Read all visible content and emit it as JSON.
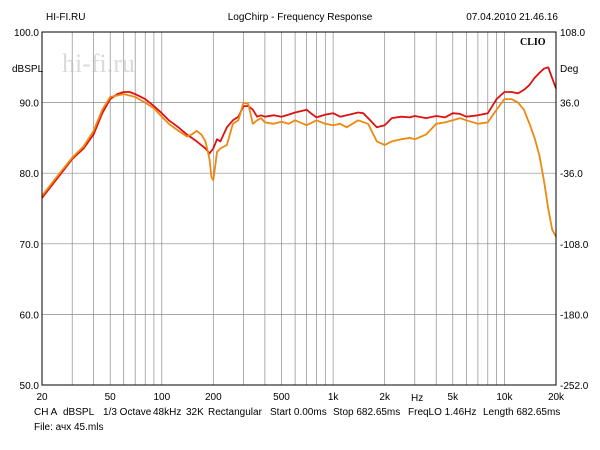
{
  "header": {
    "left": "HI-FI.RU",
    "center": "LogChirp - Frequency Response",
    "right": "07.04.2010 21.46.16"
  },
  "watermark": "hi-fi.ru",
  "brand": "CLIO",
  "footer": {
    "channel": "CH A",
    "unit": "dBSPL",
    "smoothing": "1/3 Octave",
    "sample_rate": "48kHz",
    "points": "32K",
    "window": "Rectangular",
    "start": "Start 0.00ms",
    "stop": "Stop 682.65ms",
    "freqlo": "FreqLO 1.46Hz",
    "length": "Length 682.65ms",
    "file": "File: ачх 45.mls"
  },
  "chart_data": {
    "type": "line",
    "x_scale": "log",
    "xlim": [
      20,
      20000
    ],
    "ylim": [
      50,
      100
    ],
    "ylim_right": [
      -252,
      108
    ],
    "ylabel_left": "dBSPL",
    "ylabel_right": "Deg",
    "xlabel": "Hz",
    "x_ticks": [
      20,
      50,
      100,
      200,
      500,
      1000,
      2000,
      5000,
      10000,
      20000
    ],
    "x_tick_labels": [
      "20",
      "50",
      "100",
      "200",
      "500",
      "1k",
      "2k",
      "5k",
      "10k",
      "20k"
    ],
    "y_ticks": [
      50,
      60,
      70,
      80,
      90,
      100
    ],
    "y_tick_labels": [
      "50.0",
      "60.0",
      "70.0",
      "80.0",
      "90.0",
      "100.0"
    ],
    "y_right_tick_labels": [
      "-252.0",
      "-180.0",
      "-108.0",
      "-36.0",
      "36.0",
      "108.0"
    ],
    "grid": true,
    "series": [
      {
        "color": "#dd1111",
        "x": [
          20,
          25,
          30,
          35,
          40,
          45,
          50,
          55,
          60,
          65,
          70,
          80,
          90,
          100,
          110,
          125,
          140,
          160,
          180,
          190,
          200,
          210,
          220,
          240,
          260,
          280,
          300,
          320,
          340,
          360,
          380,
          400,
          450,
          500,
          550,
          600,
          650,
          700,
          750,
          800,
          900,
          1000,
          1100,
          1200,
          1300,
          1400,
          1500,
          1600,
          1800,
          2000,
          2200,
          2500,
          2800,
          3000,
          3500,
          4000,
          4500,
          5000,
          5500,
          6000,
          7000,
          8000,
          9000,
          10000,
          11000,
          12000,
          13000,
          14000,
          15000,
          16000,
          17000,
          18000,
          20000
        ],
        "y": [
          76.5,
          79.5,
          82.0,
          83.5,
          85.5,
          88.5,
          90.5,
          91.2,
          91.5,
          91.5,
          91.2,
          90.5,
          89.5,
          88.5,
          87.5,
          86.5,
          85.5,
          84.5,
          83.5,
          82.8,
          83.5,
          84.8,
          84.5,
          86.5,
          87.5,
          88.0,
          89.5,
          89.5,
          89.0,
          88.0,
          88.2,
          88.0,
          88.2,
          88.0,
          88.3,
          88.6,
          88.8,
          89.0,
          88.4,
          87.9,
          88.3,
          88.5,
          88.0,
          88.2,
          88.4,
          88.6,
          88.5,
          87.8,
          86.5,
          86.8,
          87.8,
          88.0,
          87.9,
          88.1,
          87.8,
          88.1,
          87.9,
          88.5,
          88.4,
          88.0,
          88.2,
          88.5,
          90.5,
          91.5,
          91.5,
          91.3,
          91.8,
          92.5,
          93.5,
          94.2,
          94.8,
          95.0,
          92.0
        ]
      },
      {
        "color": "#ee8811",
        "x": [
          20,
          25,
          30,
          35,
          40,
          45,
          50,
          55,
          60,
          65,
          70,
          80,
          90,
          100,
          110,
          125,
          140,
          150,
          160,
          170,
          180,
          190,
          195,
          200,
          205,
          210,
          220,
          240,
          260,
          280,
          300,
          320,
          340,
          360,
          380,
          400,
          450,
          500,
          550,
          600,
          700,
          800,
          900,
          1000,
          1100,
          1200,
          1400,
          1600,
          1800,
          2000,
          2200,
          2500,
          2800,
          3000,
          3500,
          4000,
          4500,
          5000,
          5500,
          6000,
          7000,
          8000,
          9000,
          10000,
          11000,
          12000,
          13000,
          14000,
          15000,
          16000,
          17000,
          18000,
          19000,
          20000
        ],
        "y": [
          76.8,
          79.8,
          82.2,
          83.8,
          86.0,
          89.0,
          90.8,
          91.0,
          91.2,
          91.0,
          90.8,
          90.0,
          89.2,
          88.0,
          87.0,
          86.0,
          85.2,
          85.5,
          86.0,
          85.5,
          84.5,
          82.0,
          79.5,
          79.0,
          81.0,
          83.0,
          83.5,
          84.0,
          87.0,
          87.5,
          90.0,
          89.8,
          87.0,
          87.5,
          87.8,
          87.2,
          87.0,
          87.3,
          87.0,
          87.5,
          86.8,
          87.5,
          87.0,
          86.8,
          87.0,
          86.5,
          87.5,
          87.0,
          84.5,
          84.0,
          84.5,
          84.8,
          85.0,
          84.8,
          85.5,
          87.0,
          87.2,
          87.5,
          87.8,
          87.5,
          87.0,
          87.2,
          89.0,
          90.5,
          90.5,
          90.0,
          89.0,
          87.0,
          85.0,
          82.5,
          79.0,
          75.0,
          72.0,
          71.0
        ]
      }
    ]
  }
}
